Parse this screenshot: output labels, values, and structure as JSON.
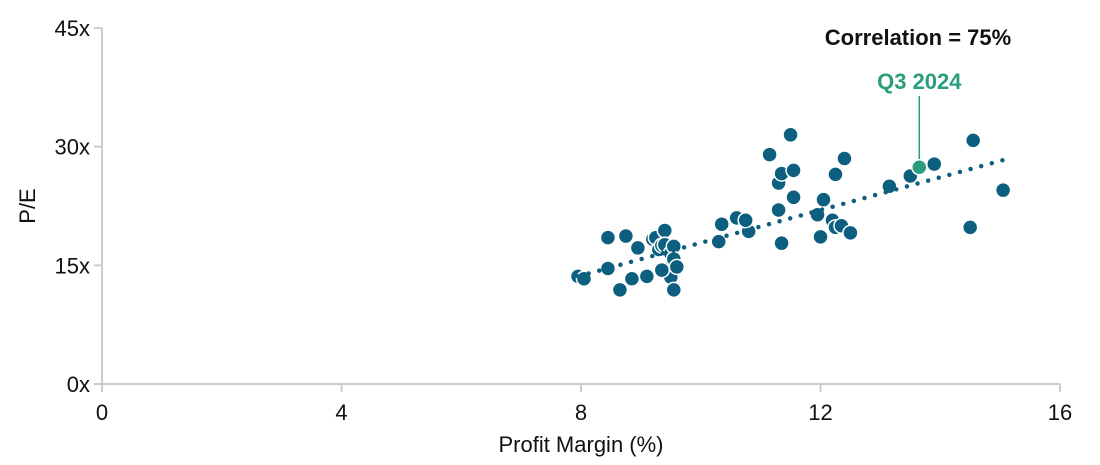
{
  "chart_data": {
    "type": "scatter",
    "xlabel": "Profit Margin (%)",
    "ylabel": "P/E",
    "xlim": [
      0,
      16
    ],
    "ylim": [
      0,
      45
    ],
    "x_ticks": [
      0,
      4,
      8,
      12,
      16
    ],
    "x_tick_labels": [
      "0",
      "4",
      "8",
      "12",
      "16"
    ],
    "y_ticks": [
      0,
      15,
      30,
      45
    ],
    "y_tick_labels": [
      "0x",
      "15x",
      "30x",
      "45x"
    ],
    "grid": false,
    "annotation": "Correlation = 75%",
    "colors": {
      "points": "#0d5f7f",
      "highlight": "#2a9d7c",
      "trend": "#0d5f7f",
      "axis": "#cccccc"
    },
    "points": [
      {
        "x": 7.95,
        "y": 13.6
      },
      {
        "x": 8.05,
        "y": 13.3
      },
      {
        "x": 8.45,
        "y": 14.6
      },
      {
        "x": 8.45,
        "y": 18.5
      },
      {
        "x": 8.65,
        "y": 11.9
      },
      {
        "x": 8.75,
        "y": 18.7
      },
      {
        "x": 8.85,
        "y": 13.3
      },
      {
        "x": 8.95,
        "y": 17.2
      },
      {
        "x": 9.1,
        "y": 13.6
      },
      {
        "x": 9.2,
        "y": 18.3
      },
      {
        "x": 9.25,
        "y": 18.5
      },
      {
        "x": 9.3,
        "y": 17.0
      },
      {
        "x": 9.35,
        "y": 17.5
      },
      {
        "x": 9.4,
        "y": 19.4
      },
      {
        "x": 9.4,
        "y": 17.6
      },
      {
        "x": 9.45,
        "y": 14.5
      },
      {
        "x": 9.5,
        "y": 16.5
      },
      {
        "x": 9.5,
        "y": 14.3
      },
      {
        "x": 9.5,
        "y": 13.5
      },
      {
        "x": 9.55,
        "y": 11.9
      },
      {
        "x": 9.55,
        "y": 17.4
      },
      {
        "x": 9.55,
        "y": 15.8
      },
      {
        "x": 9.6,
        "y": 14.8
      },
      {
        "x": 9.35,
        "y": 14.4
      },
      {
        "x": 10.3,
        "y": 18.0
      },
      {
        "x": 10.35,
        "y": 20.2
      },
      {
        "x": 10.6,
        "y": 21.0
      },
      {
        "x": 10.8,
        "y": 19.3
      },
      {
        "x": 10.75,
        "y": 20.7
      },
      {
        "x": 11.15,
        "y": 29.0
      },
      {
        "x": 11.3,
        "y": 22.0
      },
      {
        "x": 11.3,
        "y": 25.4
      },
      {
        "x": 11.35,
        "y": 26.6
      },
      {
        "x": 11.35,
        "y": 17.8
      },
      {
        "x": 11.5,
        "y": 31.5
      },
      {
        "x": 11.55,
        "y": 27.0
      },
      {
        "x": 11.55,
        "y": 23.6
      },
      {
        "x": 11.95,
        "y": 21.4
      },
      {
        "x": 12.0,
        "y": 18.6
      },
      {
        "x": 12.05,
        "y": 23.3
      },
      {
        "x": 12.2,
        "y": 20.7
      },
      {
        "x": 12.25,
        "y": 19.8
      },
      {
        "x": 12.25,
        "y": 26.5
      },
      {
        "x": 12.35,
        "y": 20.0
      },
      {
        "x": 12.4,
        "y": 28.5
      },
      {
        "x": 12.5,
        "y": 19.1
      },
      {
        "x": 13.15,
        "y": 25.0
      },
      {
        "x": 13.5,
        "y": 26.3
      },
      {
        "x": 13.9,
        "y": 27.8
      },
      {
        "x": 14.5,
        "y": 19.8
      },
      {
        "x": 14.55,
        "y": 30.8
      },
      {
        "x": 15.05,
        "y": 24.5
      }
    ],
    "highlight": {
      "label": "Q3 2024",
      "x": 13.65,
      "y": 27.4
    },
    "trendline": {
      "x": [
        7.95,
        15.05
      ],
      "y": [
        13.6,
        28.3
      ]
    }
  }
}
